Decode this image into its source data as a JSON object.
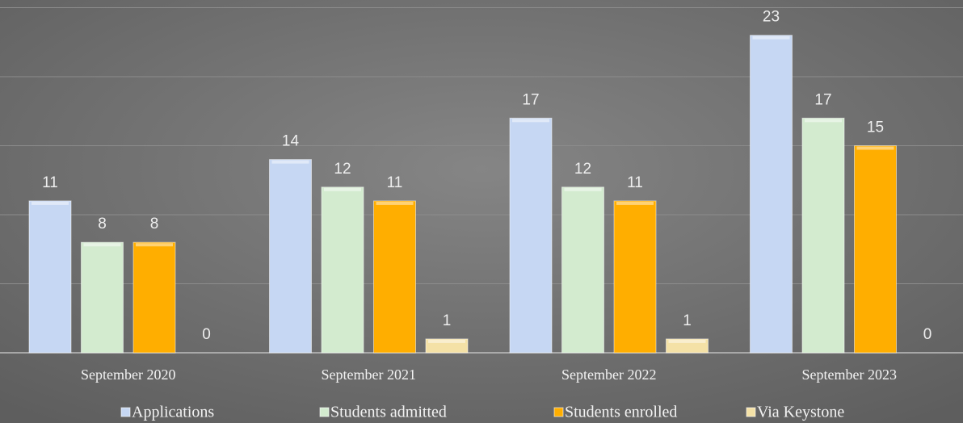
{
  "chart_data": {
    "type": "bar",
    "categories": [
      "September 2020",
      "September 2021",
      "September 2022",
      "September 2023"
    ],
    "series": [
      {
        "name": "Applications",
        "color": "#c6d7f3",
        "values": [
          11,
          14,
          17,
          23
        ]
      },
      {
        "name": "Students admitted",
        "color": "#d3ebcf",
        "values": [
          8,
          12,
          12,
          17
        ]
      },
      {
        "name": "Students enrolled",
        "color": "#ffae00",
        "values": [
          8,
          11,
          11,
          15
        ]
      },
      {
        "name": "Via Keystone",
        "color": "#f4e1a6",
        "values": [
          0,
          1,
          1,
          0
        ]
      }
    ],
    "ylim": [
      0,
      25
    ],
    "yticks": [
      0,
      5,
      10,
      15,
      20,
      25
    ],
    "grid": true,
    "legend": "bottom"
  }
}
